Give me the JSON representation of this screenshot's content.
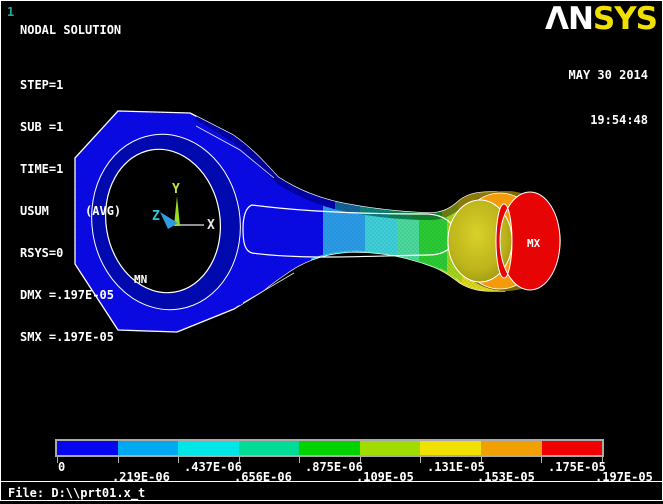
{
  "window": {
    "plot_number": "1",
    "title": "NODAL SOLUTION",
    "file_label": "File: D:\\\\prt01.x_t"
  },
  "header": {
    "lines": [
      "STEP=1",
      "SUB =1",
      "TIME=1",
      "USUM     (AVG)",
      "RSYS=0",
      "DMX =.197E-05",
      "SMX =.197E-05"
    ]
  },
  "brand": {
    "logo_left": "ΛN",
    "logo_right": "SYS",
    "logo_left_color": "#ffffff",
    "logo_right_color": "#f0e000",
    "date": "MAY 30 2014",
    "time": "19:54:48"
  },
  "model": {
    "min_label": "MN",
    "max_label": "MX",
    "triad": {
      "x_label": "X",
      "y_label": "Y",
      "z_label": "Z",
      "x_color": "#e8e8e8",
      "y_color": "#c8e43c",
      "z_color": "#2ec8dc"
    }
  },
  "colorbar": {
    "colors": [
      "#0505f0",
      "#00a8f2",
      "#00e6e6",
      "#00dc96",
      "#00d200",
      "#a0dc00",
      "#f0e100",
      "#f0a000",
      "#f00000"
    ],
    "row1": [
      "0",
      ".437E-06",
      ".875E-06",
      ".131E-05",
      ".175E-05"
    ],
    "row2": [
      ".219E-06",
      ".656E-06",
      ".109E-05",
      ".153E-05",
      ".197E-05"
    ],
    "min_value": "0",
    "max_value": ".197E-05"
  },
  "status": {
    "dmx": ".197E-05",
    "smx": ".197E-05",
    "result_type": "USUM",
    "avg_flag": "(AVG)"
  }
}
